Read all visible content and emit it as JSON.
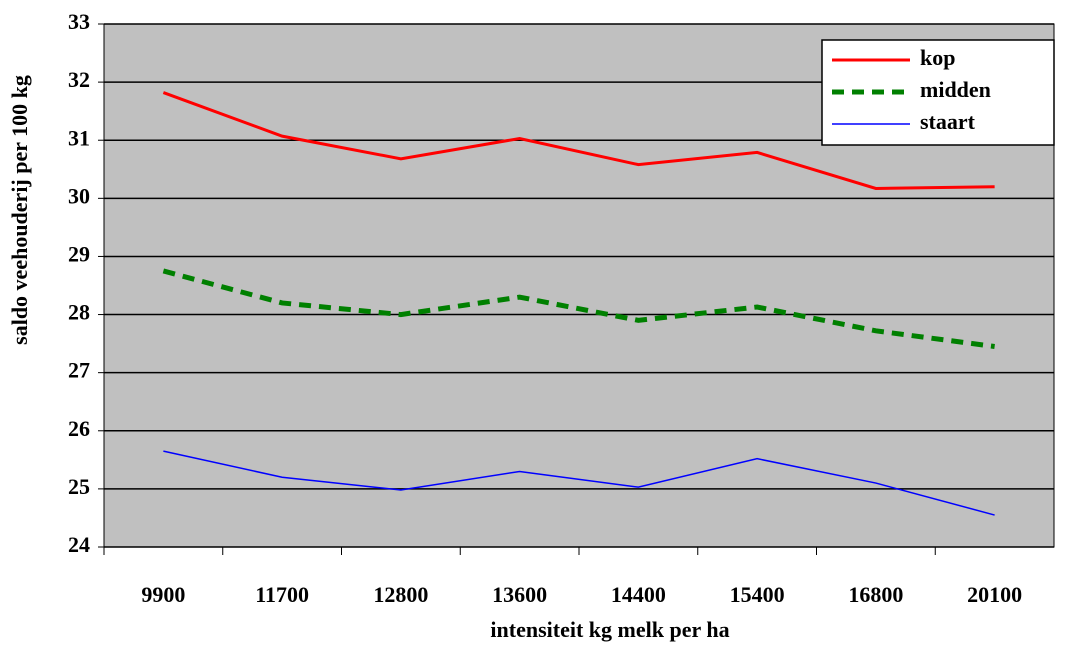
{
  "chart_data": {
    "type": "line",
    "x_label": "intensiteit kg melk per ha",
    "y_label": "saldo veehouderij per 100 kg",
    "categories": [
      "9900",
      "11700",
      "12800",
      "13600",
      "14400",
      "15400",
      "16800",
      "20100"
    ],
    "series": [
      {
        "name": "kop",
        "color": "#ff0000",
        "dash": "solid",
        "width": 3,
        "values": [
          31.82,
          31.07,
          30.68,
          31.03,
          30.58,
          30.79,
          30.17,
          30.2
        ]
      },
      {
        "name": "midden",
        "color": "#008000",
        "dash": "dashed",
        "width": 5,
        "values": [
          28.75,
          28.2,
          28.0,
          28.3,
          27.9,
          28.13,
          27.72,
          27.45
        ]
      },
      {
        "name": "staart",
        "color": "#0000ff",
        "dash": "solid",
        "width": 1.5,
        "values": [
          25.65,
          25.2,
          24.98,
          25.3,
          25.03,
          25.52,
          25.1,
          24.55
        ]
      }
    ],
    "ylim": [
      24,
      33
    ],
    "yticks": [
      24,
      25,
      26,
      27,
      28,
      29,
      30,
      31,
      32,
      33
    ],
    "grid": true,
    "plot_background": "#c0c0c0",
    "legend_position": "top-right"
  }
}
